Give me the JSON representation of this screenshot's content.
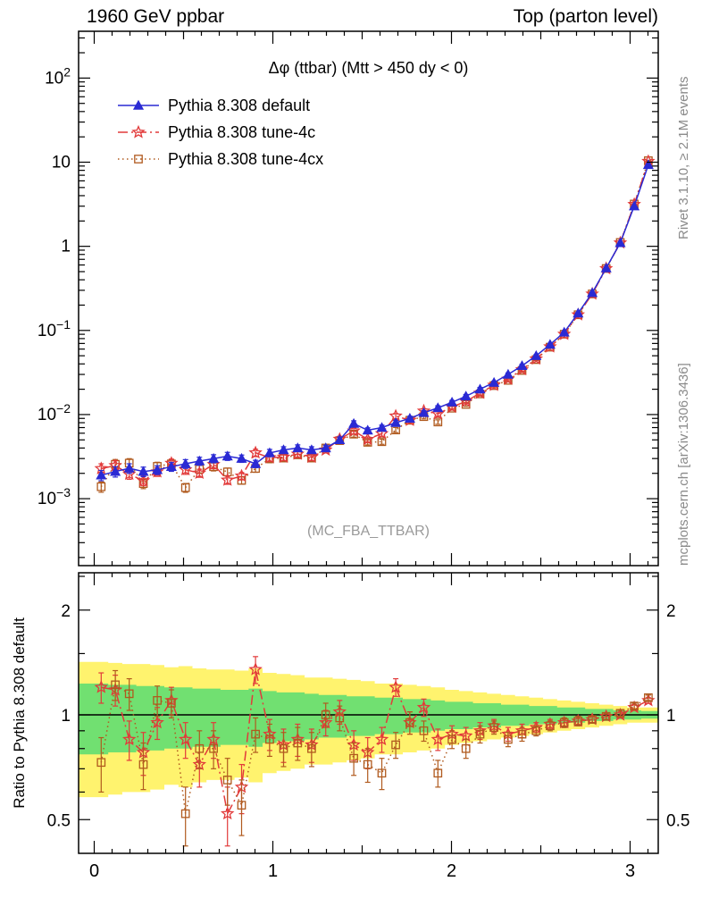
{
  "header": {
    "left": "1960 GeV ppbar",
    "right": "Top (parton level)"
  },
  "side_labels": {
    "rivet": "Rivet 3.1.10, ≥ 2.1M events",
    "mcplots": "mcplots.cern.ch [arXiv:1306.3436]"
  },
  "main_plot": {
    "title": "Δφ (ttbar) (Mtt > 450 dy < 0)",
    "watermark": "(MC_FBA_TTBAR)"
  },
  "ratio_plot": {
    "ylabel": "Ratio to Pythia 8.308 default",
    "ytick_labels": [
      "0.5",
      "1",
      "2"
    ]
  },
  "x_axis": {
    "tick_labels": [
      "0",
      "1",
      "2",
      "3"
    ]
  },
  "colors": {
    "default": "#2a2ad4",
    "tune4c": "#e23a3a",
    "tune4cx": "#b05a1e",
    "band_yellow": "#fff36e",
    "band_green": "#71e071",
    "gray_text": "#8a8a8a",
    "watermark_gray": "#9a9a9a"
  },
  "chart_data": [
    {
      "type": "line",
      "panel": "main",
      "title": "Δφ (ttbar) (Mtt > 450 dy < 0)",
      "xlim": [
        -0.0875,
        3.1575
      ],
      "yscale": "log",
      "ylim": [
        0.00016,
        360
      ],
      "ytick_exponents": [
        2,
        1,
        0,
        -1,
        -2,
        -3
      ],
      "xticks": [
        0,
        1,
        2,
        3
      ],
      "legend_position": "top-left",
      "bin_halfwidth": 0.03927,
      "x": [
        0.039,
        0.118,
        0.196,
        0.275,
        0.353,
        0.432,
        0.511,
        0.589,
        0.668,
        0.746,
        0.825,
        0.903,
        0.982,
        1.06,
        1.139,
        1.217,
        1.296,
        1.374,
        1.453,
        1.531,
        1.61,
        1.688,
        1.767,
        1.845,
        1.924,
        2.003,
        2.081,
        2.16,
        2.238,
        2.317,
        2.395,
        2.474,
        2.552,
        2.631,
        2.709,
        2.788,
        2.866,
        2.945,
        3.023,
        3.102
      ],
      "rel_err": [
        0.14,
        0.14,
        0.13,
        0.13,
        0.12,
        0.12,
        0.12,
        0.11,
        0.11,
        0.11,
        0.1,
        0.1,
        0.1,
        0.09,
        0.09,
        0.09,
        0.08,
        0.08,
        0.08,
        0.07,
        0.07,
        0.07,
        0.06,
        0.06,
        0.06,
        0.05,
        0.05,
        0.05,
        0.04,
        0.04,
        0.04,
        0.03,
        0.03,
        0.03,
        0.02,
        0.02,
        0.02,
        0.015,
        0.012,
        0.01
      ],
      "series": [
        {
          "name": "Pythia 8.308 default",
          "marker": "triangle",
          "line": "solid",
          "color": "#2a2ad4",
          "values": [
            0.0019,
            0.0021,
            0.0023,
            0.0021,
            0.0022,
            0.0024,
            0.0026,
            0.0028,
            0.003,
            0.0032,
            0.003,
            0.0026,
            0.0035,
            0.0038,
            0.004,
            0.0038,
            0.004,
            0.005,
            0.0078,
            0.0065,
            0.007,
            0.008,
            0.009,
            0.0105,
            0.012,
            0.014,
            0.0165,
            0.02,
            0.024,
            0.03,
            0.038,
            0.05,
            0.068,
            0.095,
            0.16,
            0.28,
            0.55,
            1.1,
            3.0,
            9.3
          ]
        },
        {
          "name": "Pythia 8.308 tune-4c",
          "marker": "star",
          "line": "dashdot",
          "color": "#e23a3a",
          "ratio_to_default": [
            1.2,
            1.18,
            0.85,
            0.78,
            0.95,
            1.1,
            0.85,
            0.72,
            0.85,
            0.52,
            0.62,
            1.35,
            0.88,
            0.82,
            0.85,
            0.82,
            0.95,
            1.02,
            0.82,
            0.78,
            0.85,
            1.2,
            0.95,
            1.05,
            0.85,
            0.88,
            0.87,
            0.9,
            0.93,
            0.88,
            0.9,
            0.92,
            0.94,
            0.95,
            0.96,
            0.97,
            0.99,
            1.0,
            1.05,
            1.1
          ]
        },
        {
          "name": "Pythia 8.308 tune-4cx",
          "marker": "square",
          "line": "dotted",
          "color": "#b05a1e",
          "ratio_to_default": [
            0.73,
            1.22,
            1.15,
            0.72,
            1.1,
            1.08,
            0.52,
            0.8,
            0.8,
            0.65,
            0.55,
            0.88,
            0.85,
            0.8,
            0.83,
            0.8,
            1.0,
            0.98,
            0.75,
            0.72,
            0.68,
            0.82,
            0.95,
            0.9,
            0.68,
            0.85,
            0.8,
            0.88,
            0.92,
            0.85,
            0.88,
            0.9,
            0.93,
            0.95,
            0.96,
            0.97,
            0.99,
            1.01,
            1.06,
            1.12
          ]
        }
      ]
    },
    {
      "type": "line",
      "panel": "ratio",
      "ylabel": "Ratio to Pythia 8.308 default",
      "yscale": "log",
      "ylim": [
        0.4,
        2.56
      ],
      "yticks": [
        0.5,
        1,
        2
      ],
      "reference_line": 1,
      "bands": {
        "center": 1,
        "yellow_halfwidth": [
          0.42,
          0.41,
          0.4,
          0.4,
          0.39,
          0.37,
          0.38,
          0.36,
          0.35,
          0.35,
          0.34,
          0.36,
          0.32,
          0.31,
          0.3,
          0.28,
          0.28,
          0.27,
          0.26,
          0.25,
          0.23,
          0.23,
          0.22,
          0.21,
          0.2,
          0.18,
          0.17,
          0.16,
          0.15,
          0.14,
          0.13,
          0.12,
          0.11,
          0.1,
          0.09,
          0.08,
          0.07,
          0.06,
          0.05,
          0.05
        ],
        "green_halfwidth": [
          0.23,
          0.22,
          0.22,
          0.21,
          0.21,
          0.2,
          0.2,
          0.19,
          0.19,
          0.18,
          0.18,
          0.19,
          0.17,
          0.16,
          0.16,
          0.15,
          0.14,
          0.14,
          0.13,
          0.13,
          0.12,
          0.12,
          0.11,
          0.11,
          0.1,
          0.09,
          0.09,
          0.08,
          0.08,
          0.07,
          0.07,
          0.06,
          0.06,
          0.05,
          0.05,
          0.04,
          0.04,
          0.03,
          0.03,
          0.025
        ]
      },
      "series": [
        {
          "name": "Pythia 8.308 tune-4c / default",
          "marker": "star",
          "line": "dashdot",
          "color": "#e23a3a",
          "err": [
            0.12,
            0.12,
            0.11,
            0.11,
            0.1,
            0.1,
            0.1,
            0.1,
            0.1,
            0.1,
            0.1,
            0.12,
            0.09,
            0.09,
            0.09,
            0.09,
            0.08,
            0.08,
            0.08,
            0.08,
            0.07,
            0.07,
            0.07,
            0.06,
            0.06,
            0.05,
            0.05,
            0.05,
            0.04,
            0.04,
            0.04,
            0.03,
            0.03,
            0.03,
            0.03,
            0.02,
            0.02,
            0.02,
            0.02,
            0.02
          ]
        },
        {
          "name": "Pythia 8.308 tune-4cx / default",
          "marker": "square",
          "line": "dotted",
          "color": "#b05a1e",
          "err": [
            0.13,
            0.12,
            0.12,
            0.11,
            0.11,
            0.1,
            0.1,
            0.1,
            0.1,
            0.1,
            0.1,
            0.1,
            0.09,
            0.09,
            0.09,
            0.09,
            0.08,
            0.08,
            0.08,
            0.08,
            0.07,
            0.07,
            0.07,
            0.06,
            0.06,
            0.05,
            0.05,
            0.05,
            0.04,
            0.04,
            0.04,
            0.03,
            0.03,
            0.03,
            0.03,
            0.02,
            0.02,
            0.02,
            0.02,
            0.02
          ]
        }
      ]
    }
  ]
}
